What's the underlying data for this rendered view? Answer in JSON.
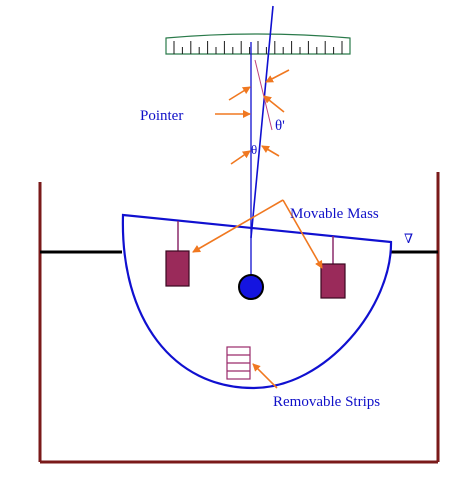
{
  "labels": {
    "pointer": "Pointer",
    "theta": "θ",
    "theta_prime": "θ'",
    "movable_mass": "Movable Mass",
    "removable_strips": "Removable Strips",
    "waterline_symbol": "∇"
  },
  "colors": {
    "tank": "#7a1a1a",
    "hull": "#1010d0",
    "label": "#1010c8",
    "arrow": "#f07820",
    "mass_fill": "#9a2a5a",
    "mass_stroke": "#3a0820",
    "scale": "#2a7a4a",
    "pivot": "#1414e0",
    "water": "#000000"
  },
  "icons": {
    "pivot": "pivot-circle-icon",
    "masses": "mass-block-icon",
    "strips": "strip-stack-icon",
    "waterline": "inverted-triangle-icon"
  }
}
